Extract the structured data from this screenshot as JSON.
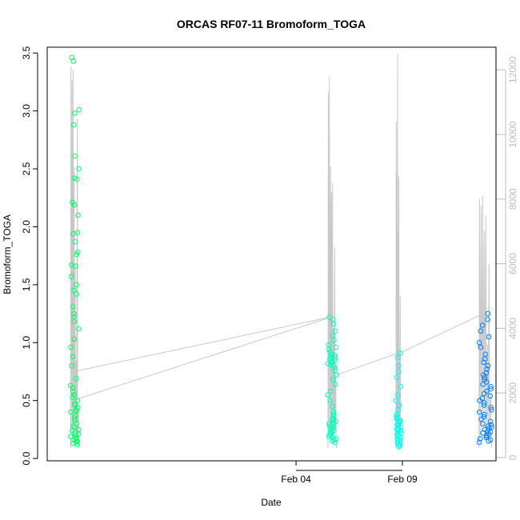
{
  "chart_data": {
    "type": "scatter",
    "title": "ORCAS RF07-11 Bromoform_TOGA",
    "xlabel": "Date",
    "ylabel": "Bromoform_TOGA",
    "y2label": "",
    "xlim_days": [
      -7.7,
      13.4
    ],
    "ylim": [
      -0.02,
      3.55
    ],
    "y2lim": [
      -100,
      12700
    ],
    "x_ticks": [
      {
        "day": 4,
        "label": "Feb 04"
      },
      {
        "day": 9,
        "label": "Feb 09"
      }
    ],
    "y_ticks": [
      0.0,
      0.5,
      1.0,
      1.5,
      2.0,
      2.5,
      3.0,
      3.5
    ],
    "y_tick_labels": [
      "0.0",
      "0.5",
      "1.0",
      "1.5",
      "2.0",
      "2.5",
      "3.0",
      "3.5"
    ],
    "y2_ticks": [
      0,
      2000,
      4000,
      6000,
      8000,
      10000,
      12000
    ],
    "y2_tick_labels": [
      "0",
      "2000",
      "4000",
      "6000",
      "8000",
      "10000",
      "12000"
    ],
    "grid": false,
    "legend": "none",
    "colors": {
      "flight1": "#00ff66",
      "flight2": "#00ffbb",
      "flight3": "#00ffee",
      "flight4": "#0080ff",
      "altitude_line": "#c8c8c8",
      "axis": "#000000",
      "right_axis": "#bdbdbd"
    },
    "flights": [
      {
        "color": "#00ff66",
        "x_start": -6.6,
        "x_end": -6.2,
        "values": [
          3.46,
          3.43,
          2.88,
          2.61,
          2.5,
          2.42,
          2.41,
          2.21,
          2.19,
          2.1,
          1.95,
          1.94,
          1.87,
          1.78,
          1.76,
          1.67,
          1.66,
          1.57,
          1.5,
          1.45,
          1.42,
          1.31,
          1.25,
          1.22,
          1.18,
          1.12,
          1.03,
          0.96,
          0.88,
          0.8,
          0.69,
          0.63,
          0.61,
          0.58,
          0.55,
          0.53,
          0.5,
          0.47,
          0.46,
          0.44,
          0.42,
          0.41,
          0.4,
          0.37,
          0.35,
          0.33,
          0.3,
          0.28,
          0.27,
          0.25,
          0.24,
          0.22,
          0.21,
          0.2,
          0.19,
          0.18,
          0.17,
          0.16,
          0.15,
          0.14,
          0.13,
          0.12,
          3.01,
          2.98
        ],
        "altitude_peaks": [
          12100,
          11700,
          12000,
          9000,
          6000,
          3000,
          10500,
          1500
        ]
      },
      {
        "color": "#00ffbb",
        "x_start": 5.5,
        "x_end": 5.9,
        "values": [
          1.22,
          1.2,
          1.16,
          1.1,
          1.06,
          1.02,
          0.98,
          0.96,
          0.94,
          0.92,
          0.9,
          0.89,
          0.88,
          0.87,
          0.86,
          0.85,
          0.84,
          0.83,
          0.82,
          0.81,
          0.8,
          0.78,
          0.76,
          0.72,
          0.68,
          0.64,
          0.58,
          0.55,
          0.5,
          0.45,
          0.4,
          0.38,
          0.36,
          0.34,
          0.33,
          0.32,
          0.31,
          0.3,
          0.29,
          0.28,
          0.27,
          0.26,
          0.25,
          0.24,
          0.23,
          0.22,
          0.21,
          0.2,
          0.19,
          0.18,
          0.17,
          0.16,
          0.15,
          0.14
        ],
        "altitude_peaks": [
          11300,
          11800,
          9000,
          8200,
          8500,
          4000,
          6500,
          2500
        ]
      },
      {
        "color": "#00ffee",
        "x_start": 8.7,
        "x_end": 8.95,
        "values": [
          0.91,
          0.87,
          0.8,
          0.75,
          0.7,
          0.62,
          0.55,
          0.5,
          0.46,
          0.42,
          0.38,
          0.36,
          0.35,
          0.34,
          0.33,
          0.32,
          0.31,
          0.3,
          0.29,
          0.28,
          0.27,
          0.26,
          0.25,
          0.24,
          0.23,
          0.22,
          0.21,
          0.2,
          0.19,
          0.18,
          0.17,
          0.16,
          0.15,
          0.14,
          0.13,
          0.12,
          0.11,
          0.1
        ],
        "altitude_peaks": [
          10400,
          8800,
          12500,
          7000,
          8700,
          3000,
          5000,
          1200
        ]
      },
      {
        "color": "#0080ff",
        "x_start": 12.6,
        "x_end": 13.2,
        "values": [
          1.25,
          1.2,
          1.15,
          1.1,
          1.05,
          1.0,
          0.96,
          0.9,
          0.86,
          0.83,
          0.8,
          0.77,
          0.74,
          0.72,
          0.7,
          0.68,
          0.66,
          0.64,
          0.62,
          0.6,
          0.58,
          0.56,
          0.54,
          0.52,
          0.5,
          0.48,
          0.46,
          0.44,
          0.42,
          0.4,
          0.38,
          0.36,
          0.34,
          0.32,
          0.3,
          0.29,
          0.28,
          0.27,
          0.26,
          0.25,
          0.24,
          0.23,
          0.22,
          0.21,
          0.2,
          0.19,
          0.18,
          0.17,
          0.16,
          0.15,
          0.14
        ],
        "altitude_peaks": [
          8000,
          7800,
          8100,
          7000,
          7500,
          3500,
          6000,
          2000
        ]
      }
    ]
  }
}
